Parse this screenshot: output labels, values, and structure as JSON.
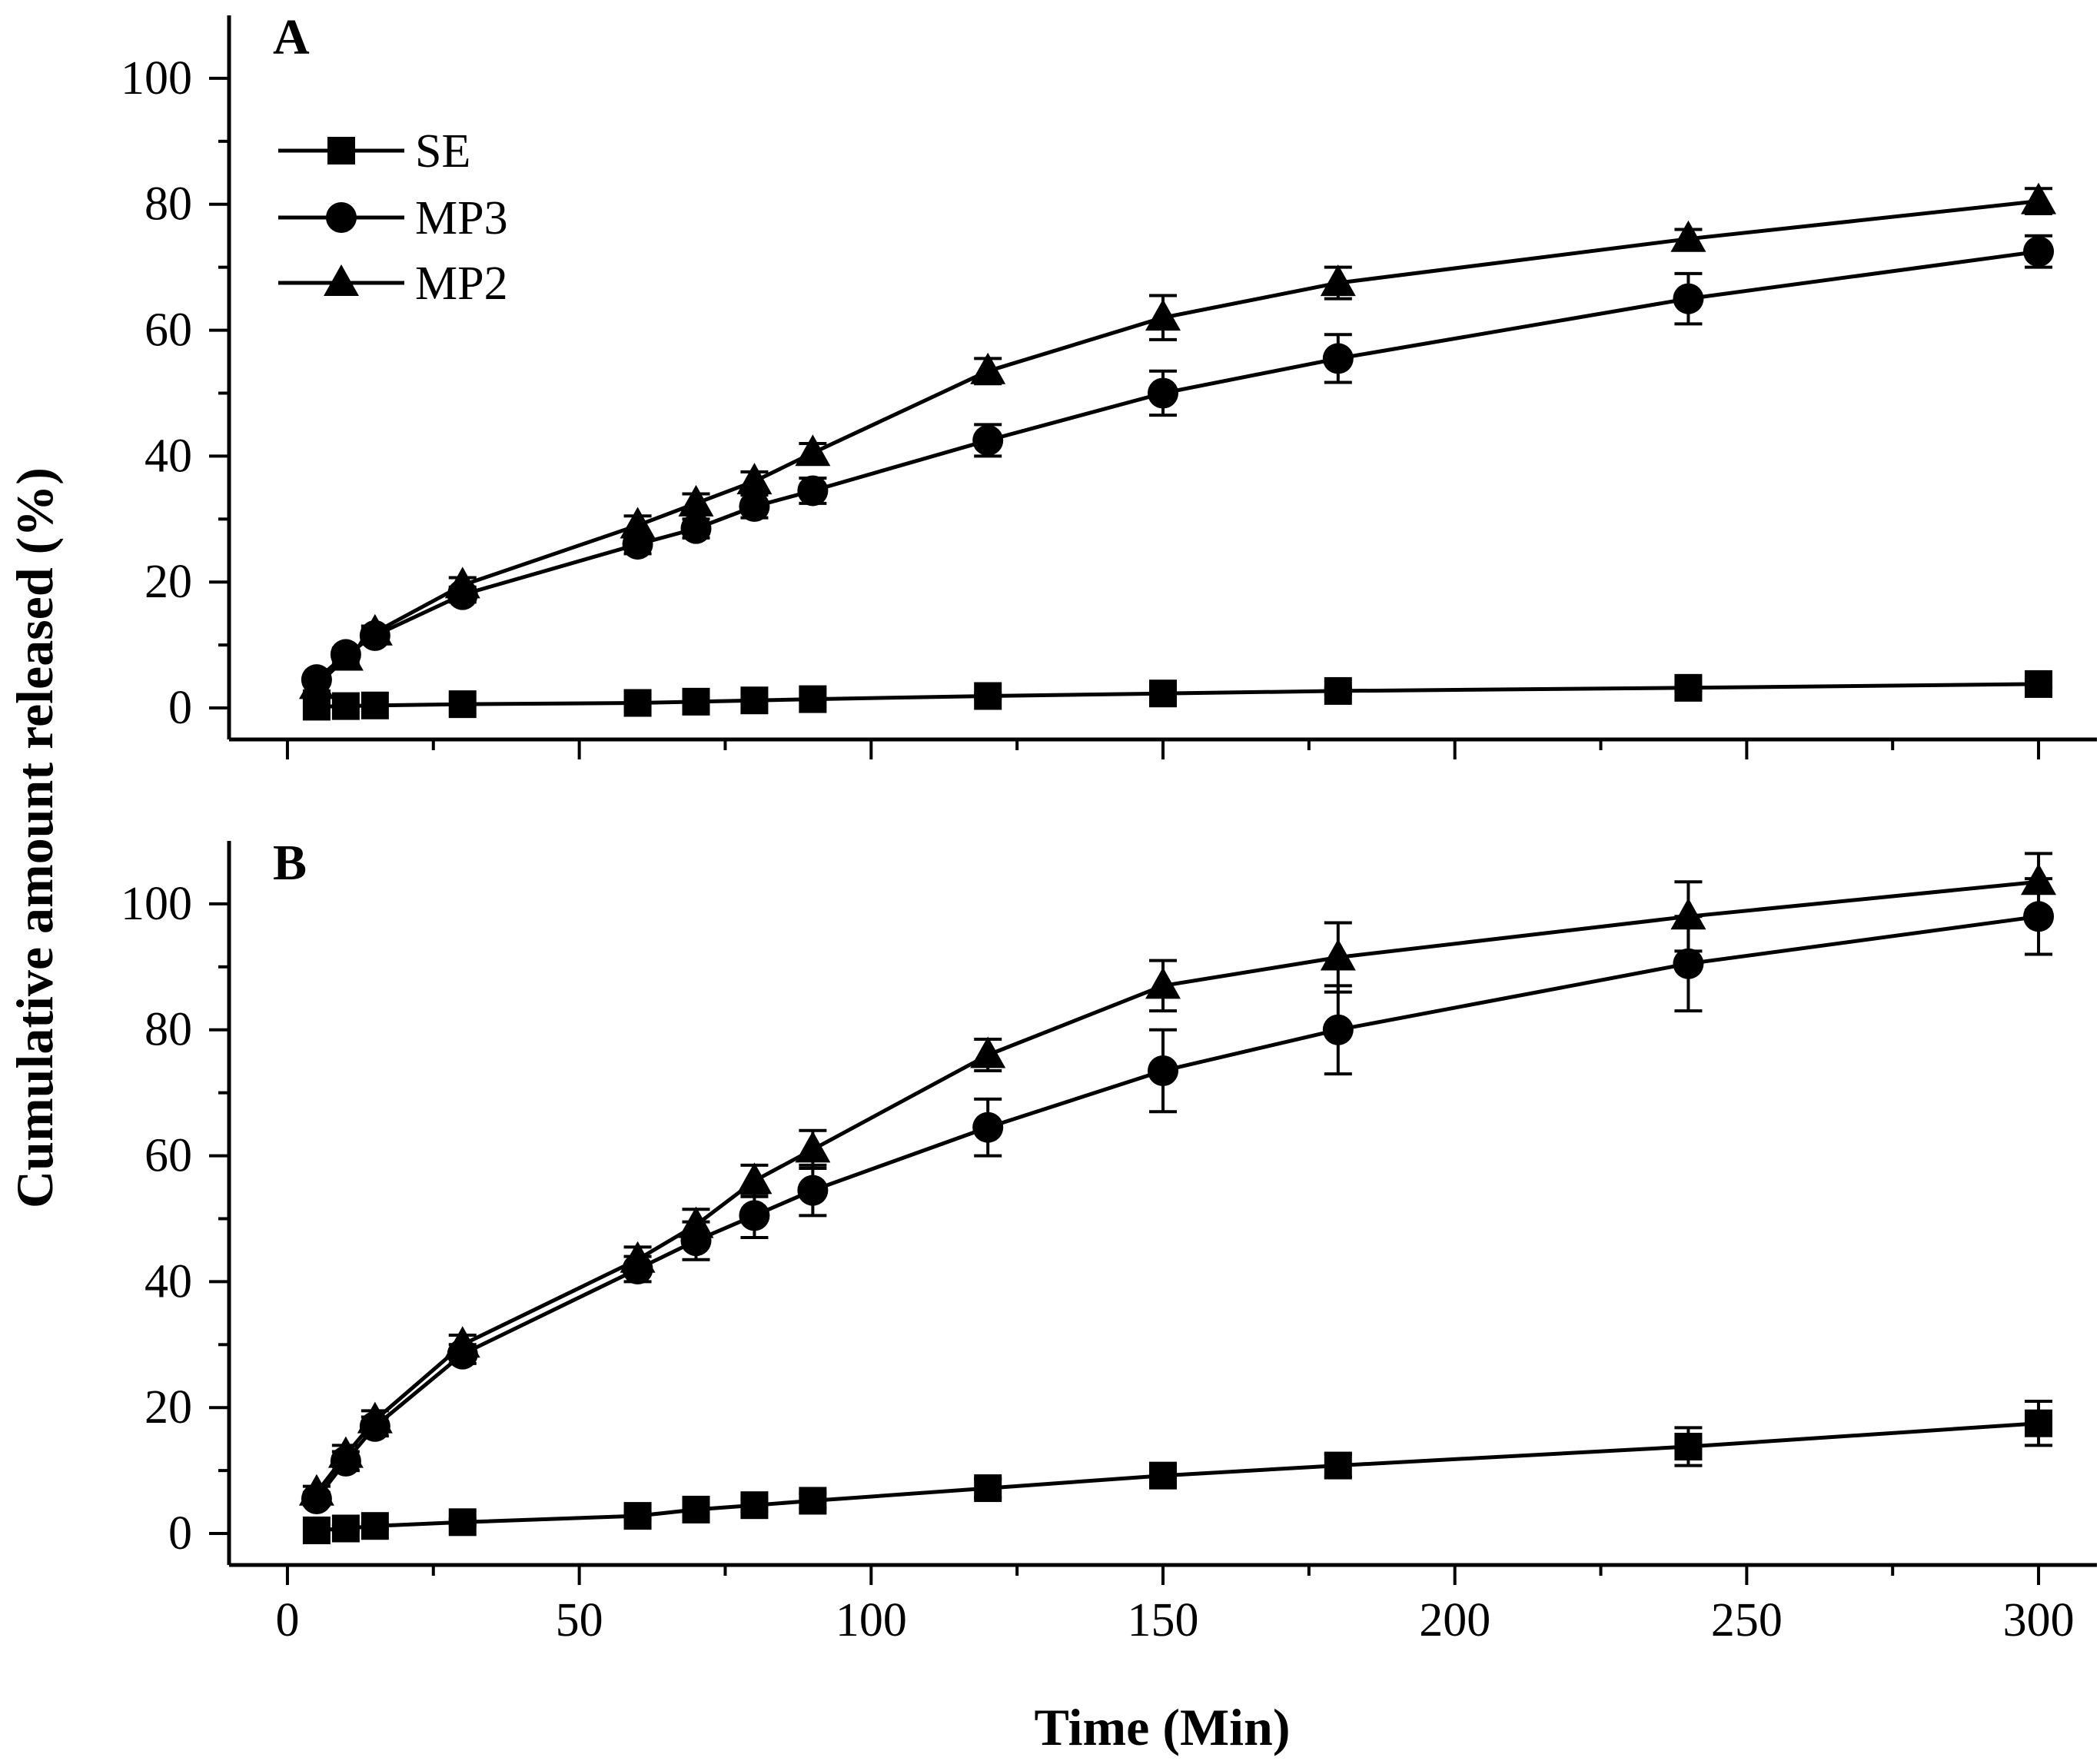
{
  "chart_data": [
    {
      "type": "line",
      "panel_label": "A",
      "xlabel": "",
      "ylabel": "Cumulative amount released (%)",
      "xlim": [
        -10,
        310
      ],
      "ylim": [
        -5,
        110
      ],
      "x_ticks": [],
      "y_ticks": [
        "0",
        "20",
        "40",
        "60",
        "80",
        "100"
      ],
      "legend": {
        "placement": "top-left",
        "entries": [
          "SE",
          "MP3",
          "MP2"
        ]
      },
      "x": [
        5,
        10,
        15,
        30,
        60,
        70,
        80,
        90,
        120,
        150,
        180,
        240,
        300
      ],
      "series": [
        {
          "name": "SE",
          "marker": "square",
          "values": [
            0.2,
            0.3,
            0.4,
            0.6,
            0.8,
            1.0,
            1.2,
            1.4,
            1.9,
            2.3,
            2.7,
            3.2,
            3.8
          ],
          "errors": [
            0.3,
            0.3,
            0.3,
            0.3,
            0.3,
            0.3,
            0.3,
            0.3,
            0.4,
            0.4,
            0.5,
            0.5,
            0.6
          ]
        },
        {
          "name": "MP3",
          "marker": "circle",
          "values": [
            4.5,
            8.5,
            11.5,
            18,
            26,
            28.5,
            32,
            34.5,
            42.5,
            50,
            55.5,
            65,
            72.5
          ],
          "errors": [
            0.8,
            1.0,
            1.0,
            1.2,
            1.5,
            1.5,
            1.8,
            2.0,
            2.5,
            3.5,
            3.8,
            4.0,
            2.5
          ]
        },
        {
          "name": "MP2",
          "marker": "triangle",
          "values": [
            3.5,
            8,
            12,
            19.5,
            29,
            32.5,
            36,
            40.5,
            53.5,
            62,
            67.5,
            74.5,
            80.5
          ],
          "errors": [
            0.8,
            1.0,
            1.0,
            1.2,
            1.5,
            1.5,
            1.5,
            1.5,
            2.0,
            3.5,
            2.5,
            1.5,
            2.0
          ]
        }
      ]
    },
    {
      "type": "line",
      "panel_label": "B",
      "xlabel": "Time (Min)",
      "ylabel": "Cumulative amount released (%)",
      "xlim": [
        -10,
        310
      ],
      "ylim": [
        -5,
        110
      ],
      "x_ticks": [
        "0",
        "50",
        "100",
        "150",
        "200",
        "250",
        "300"
      ],
      "y_ticks": [
        "0",
        "20",
        "40",
        "60",
        "80",
        "100"
      ],
      "legend": null,
      "x": [
        5,
        10,
        15,
        30,
        60,
        70,
        80,
        90,
        120,
        150,
        180,
        240,
        300
      ],
      "series": [
        {
          "name": "SE",
          "marker": "square",
          "values": [
            0.5,
            0.8,
            1.2,
            1.8,
            2.8,
            3.8,
            4.5,
            5.2,
            7.2,
            9.2,
            10.8,
            13.8,
            17.5
          ],
          "errors": [
            0.3,
            0.4,
            0.4,
            0.5,
            0.6,
            0.8,
            1.0,
            1.2,
            1.5,
            1.8,
            1.8,
            3.0,
            3.5
          ]
        },
        {
          "name": "MP3",
          "marker": "circle",
          "values": [
            5.5,
            11.5,
            17,
            28.5,
            42,
            46.5,
            50.5,
            54.5,
            64.5,
            73.5,
            80,
            90.5,
            98
          ],
          "errors": [
            1.0,
            1.5,
            1.5,
            1.5,
            2.0,
            3.0,
            3.5,
            4.0,
            4.5,
            6.5,
            7.0,
            7.5,
            6.0
          ]
        },
        {
          "name": "MP2",
          "marker": "triangle",
          "values": [
            6.5,
            12.5,
            18,
            30,
            43.5,
            49,
            56,
            61,
            76,
            87,
            91.5,
            98,
            103.5
          ],
          "errors": [
            1.0,
            1.5,
            1.5,
            1.5,
            2.0,
            2.5,
            2.5,
            3.0,
            2.5,
            4.0,
            5.5,
            5.5,
            4.5
          ]
        }
      ]
    }
  ]
}
